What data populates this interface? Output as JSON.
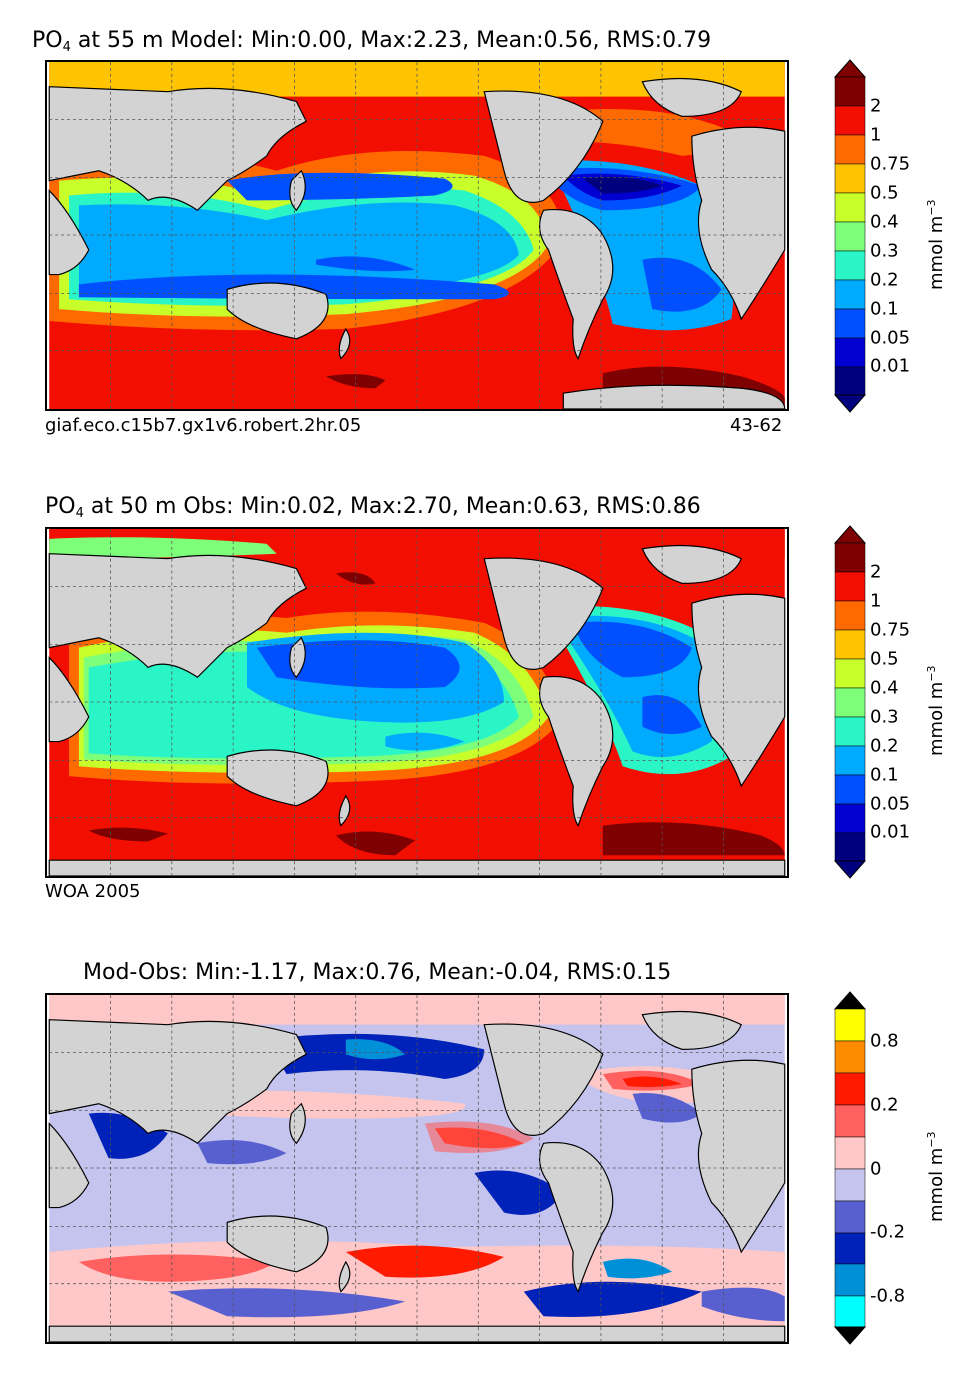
{
  "panels": [
    {
      "title_main": "PO",
      "title_sub": "4",
      "title_rest": " at 55 m Model: Min:0.00, Max:2.23, Mean:0.56, RMS:0.79",
      "footer_left": "giaf.eco.c15b7.gx1v6.robert.2hr.05",
      "footer_right": "43-62",
      "colorbar_ticks": [
        "2",
        "1",
        "0.75",
        "0.5",
        "0.4",
        "0.3",
        "0.2",
        "0.1",
        "0.05",
        "0.01"
      ],
      "colorbar_unit": "mmol m",
      "colorbar_unit_exp": "−3"
    },
    {
      "title_main": "PO",
      "title_sub": "4",
      "title_rest": " at 50 m Obs: Min:0.02, Max:2.70, Mean:0.63, RMS:0.86",
      "footer_left": "WOA 2005",
      "footer_right": "",
      "colorbar_ticks": [
        "2",
        "1",
        "0.75",
        "0.5",
        "0.4",
        "0.3",
        "0.2",
        "0.1",
        "0.05",
        "0.01"
      ],
      "colorbar_unit": "mmol m",
      "colorbar_unit_exp": "−3"
    },
    {
      "title_main": "",
      "title_sub": "",
      "title_rest": "Mod-Obs: Min:-1.17, Max:0.76, Mean:-0.04, RMS:0.15",
      "footer_left": "",
      "footer_right": "",
      "colorbar_ticks": [
        "0.8",
        "0.2",
        "0",
        "-0.2",
        "-0.8"
      ],
      "colorbar_unit": "mmol m",
      "colorbar_unit_exp": "−3"
    }
  ],
  "colors": {
    "land": "#d3d3d3",
    "jet_scale": [
      "#00007f",
      "#0000d0",
      "#0050ff",
      "#00aaff",
      "#2af5c7",
      "#7dff7a",
      "#c8ff2a",
      "#ffc400",
      "#ff6a00",
      "#f20e00",
      "#7f0000"
    ],
    "diff_scale": [
      "#00ffff",
      "#0090d8",
      "#0022b8",
      "#5860d0",
      "#c4c4ee",
      "#ffc8c8",
      "#ff6060",
      "#ff1a00",
      "#ff8c00",
      "#ffff00"
    ]
  }
}
